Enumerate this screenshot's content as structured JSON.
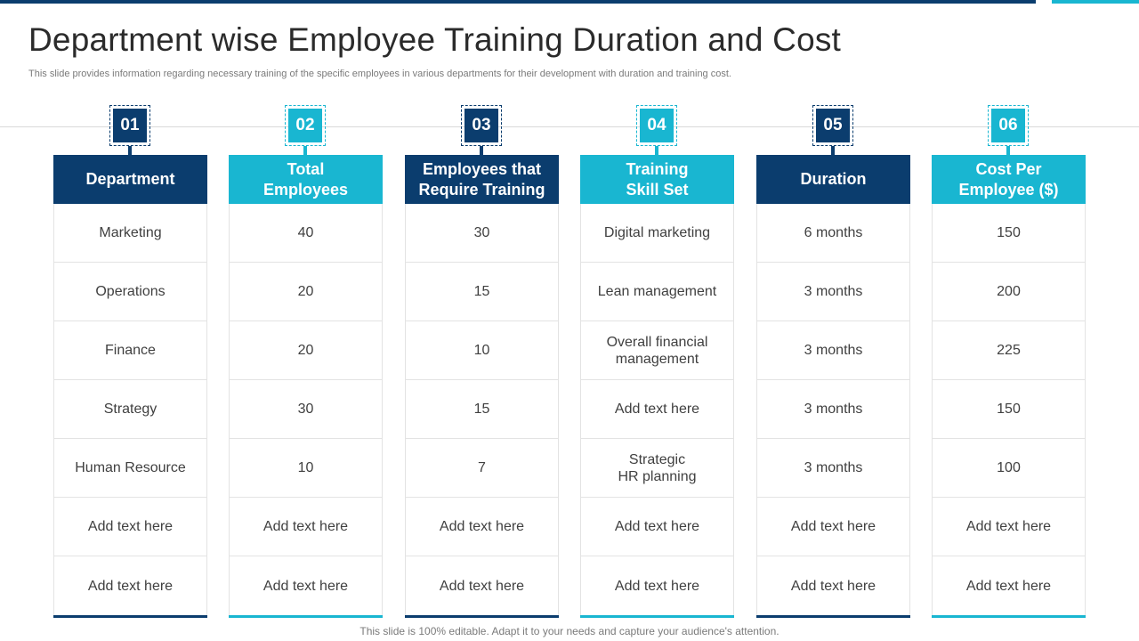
{
  "slide": {
    "title": "Department wise Employee Training Duration and Cost",
    "subtitle": "This slide provides information regarding necessary training of the specific employees in various departments for their development with duration and training cost.",
    "footer": "This slide is 100% editable. Adapt it to your needs and capture your audience's attention."
  },
  "colors": {
    "dark": "#0b3d6e",
    "light": "#19b6d1"
  },
  "columns": [
    {
      "number": "01",
      "header": "Department",
      "cells": [
        "Marketing",
        "Operations",
        "Finance",
        "Strategy",
        "Human Resource",
        "Add text here",
        "Add text here"
      ]
    },
    {
      "number": "02",
      "header": "Total\nEmployees",
      "cells": [
        "40",
        "20",
        "20",
        "30",
        "10",
        "Add text here",
        "Add text here"
      ]
    },
    {
      "number": "03",
      "header": "Employees that\nRequire Training",
      "cells": [
        "30",
        "15",
        "10",
        "15",
        "7",
        "Add text here",
        "Add text here"
      ]
    },
    {
      "number": "04",
      "header": "Training\nSkill Set",
      "cells": [
        "Digital marketing",
        "Lean management",
        "Overall financial\nmanagement",
        "Add text here",
        "Strategic\nHR planning",
        "Add text here",
        "Add text here"
      ]
    },
    {
      "number": "05",
      "header": "Duration",
      "cells": [
        "6 months",
        "3 months",
        "3 months",
        "3 months",
        "3 months",
        "Add text here",
        "Add text here"
      ]
    },
    {
      "number": "06",
      "header": "Cost Per\nEmployee ($)",
      "cells": [
        "150",
        "200",
        "225",
        "150",
        "100",
        "Add text here",
        "Add text here"
      ]
    }
  ]
}
